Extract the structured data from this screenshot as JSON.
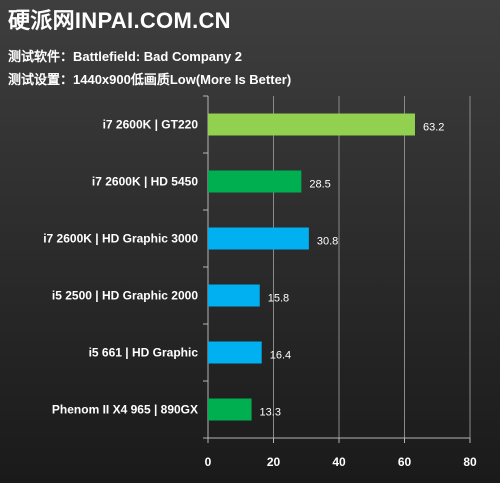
{
  "header": {
    "site_title": "硬派网INPAI.COM.CN",
    "software_line": "测试软件：Battlefield: Bad Company 2",
    "settings_line": "测试设置：1440x900低画质Low(More Is Better)"
  },
  "colors": {
    "gt220": "#92d050",
    "hd5450": "#00b050",
    "intel_gpu": "#00b0f0",
    "hd5450_phenom": "#00b050"
  },
  "chart_data": {
    "type": "bar",
    "orientation": "horizontal",
    "title": "",
    "xlabel": "",
    "ylabel": "",
    "categories": [
      "i7 2600K | GT220",
      "i7 2600K | HD 5450",
      "i7 2600K | HD Graphic 3000",
      "i5 2500 | HD Graphic 2000",
      "i5 661 | HD Graphic",
      "Phenom II X4 965 | 890GX"
    ],
    "values": [
      63.2,
      28.5,
      30.8,
      15.8,
      16.4,
      13.3
    ],
    "value_labels": [
      "63.2",
      "28.5",
      "30.8",
      "15.8",
      "16.4",
      "13.3"
    ],
    "bar_colors": [
      "#92d050",
      "#00b050",
      "#00b0f0",
      "#00b0f0",
      "#00b0f0",
      "#00b050"
    ],
    "xlim": [
      0,
      80
    ],
    "xticks": [
      0,
      20,
      40,
      60,
      80
    ],
    "grid": true,
    "legend": "none"
  }
}
